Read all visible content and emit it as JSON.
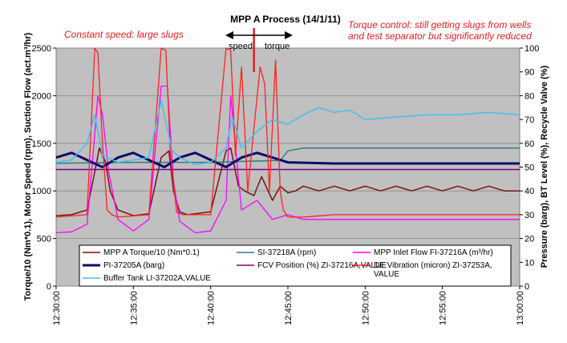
{
  "chart_data": {
    "type": "line",
    "title": "MPP A Process (14/1/11)",
    "annotations": {
      "left": "Constant speed: large slugs",
      "right_line1": "Torque control: still getting slugs from wells",
      "right_line2": "and test separator but significantly reduced",
      "speed": "speed",
      "torque": "torque"
    },
    "ylabel_left": "Torque/10 (Nm*0.1), Motor Speed (rpm), Suction Flow (act.m³/hr)",
    "ylabel_right": "Pressure (barg), BT Level (%), Recycle Valve (%)",
    "y_left": {
      "min": 0,
      "max": 2500,
      "ticks": [
        0,
        500,
        1000,
        1500,
        2000,
        2500
      ]
    },
    "y_right": {
      "min": 0,
      "max": 100,
      "ticks": [
        0,
        10,
        20,
        30,
        40,
        50,
        60,
        70,
        80,
        90,
        100
      ]
    },
    "x": {
      "start": "12:30:00",
      "end": "13:00:00",
      "ticks": [
        "12:30:00",
        "12:35:00",
        "12:40:00",
        "12:45:00",
        "12:50:00",
        "12:55:00",
        "13:00:00"
      ]
    },
    "switch_time_min": 12.8,
    "grid": true,
    "legend_position": "bottom",
    "series": [
      {
        "name": "MPP A Torque/10 (Nm*0.1)",
        "axis": "left",
        "color": "#7b1010",
        "width": 1.5,
        "x": [
          0,
          1,
          2,
          2.5,
          2.8,
          3.2,
          3.5,
          4,
          5,
          6,
          6.8,
          7.3,
          7.6,
          8,
          8.5,
          9,
          10,
          11,
          11.3,
          11.8,
          12.2,
          12.8,
          13.3,
          14,
          14.5,
          15,
          15.5,
          16,
          17,
          18,
          19,
          20,
          21,
          22,
          23,
          24,
          25,
          26,
          27,
          28,
          29,
          30
        ],
        "y": [
          740,
          750,
          800,
          1200,
          1450,
          1300,
          1000,
          800,
          740,
          760,
          1350,
          1420,
          1000,
          780,
          750,
          760,
          780,
          1420,
          1450,
          1050,
          1000,
          950,
          1150,
          900,
          1050,
          980,
          1000,
          1050,
          1000,
          1050,
          1000,
          1050,
          1000,
          1050,
          1000,
          1050,
          1000,
          1050,
          1000,
          1050,
          1000,
          1000
        ]
      },
      {
        "name": "SI-37218A (rpm)",
        "axis": "left",
        "color": "#2e7d7d",
        "width": 1.5,
        "x": [
          0,
          5,
          10,
          12,
          14.5,
          15,
          16,
          18,
          20,
          22,
          24,
          26,
          28,
          30
        ],
        "y": [
          1290,
          1300,
          1300,
          1310,
          1320,
          1420,
          1450,
          1450,
          1450,
          1450,
          1450,
          1450,
          1450,
          1450
        ]
      },
      {
        "name": "MPP Inlet Flow FI-37216A (m³/hr)",
        "axis": "left",
        "color": "#ff00ff",
        "width": 1.3,
        "x": [
          0,
          1,
          2,
          2.4,
          2.7,
          3,
          3.4,
          4,
          5,
          6,
          6.8,
          7.2,
          7.6,
          8,
          9,
          10,
          11,
          11.3,
          11.7,
          12,
          12.5,
          13,
          14,
          15,
          16,
          18,
          20,
          22,
          24,
          26,
          28,
          30
        ],
        "y": [
          560,
          570,
          650,
          1400,
          2000,
          1800,
          1200,
          700,
          580,
          700,
          2100,
          2100,
          1100,
          680,
          560,
          580,
          900,
          2000,
          1300,
          800,
          850,
          900,
          700,
          750,
          700,
          700,
          700,
          700,
          700,
          700,
          700,
          700
        ]
      },
      {
        "name": "PI-37205A (barg)",
        "axis": "right",
        "color": "#0b0b6a",
        "width": 3,
        "x": [
          0,
          1,
          2,
          3,
          4,
          5,
          6,
          7,
          8,
          9,
          10,
          11,
          12,
          13,
          14,
          15,
          18,
          22,
          26,
          30
        ],
        "y": [
          54,
          56,
          53,
          50,
          54,
          56,
          53,
          50,
          54,
          56,
          53,
          50,
          54,
          56,
          54,
          52,
          51.5,
          51.5,
          51.5,
          51.5
        ]
      },
      {
        "name": "FCV Position (%) ZI-37216A,VALUE",
        "axis": "right",
        "color": "#800080",
        "width": 1.5,
        "x": [
          0,
          15,
          30
        ],
        "y": [
          49,
          49,
          49
        ]
      },
      {
        "name": "DE Vibration (micron) ZI-37253A, VALUE",
        "axis": "right",
        "color": "#ff2020",
        "width": 1.3,
        "x": [
          0,
          2,
          2.5,
          2.7,
          3,
          3.3,
          3.6,
          4,
          6,
          6.8,
          7.1,
          7.4,
          7.8,
          8.2,
          10,
          11,
          11.3,
          11.6,
          12,
          12.4,
          13.2,
          13.5,
          13.8,
          14.2,
          14.5,
          14.7,
          15,
          16,
          18,
          20,
          22,
          24,
          26,
          28,
          30
        ],
        "y": [
          29,
          30,
          100,
          98,
          60,
          32,
          30,
          29,
          30,
          100,
          99,
          55,
          31,
          30,
          30,
          100,
          99,
          55,
          92,
          40,
          92,
          85,
          40,
          95,
          40,
          32,
          29,
          29,
          30,
          30,
          30,
          30,
          30,
          30,
          30
        ]
      },
      {
        "name": "Buffer Tank LI-37202A,VALUE",
        "axis": "right",
        "color": "#40c0f0",
        "width": 1.5,
        "x": [
          0,
          1,
          2,
          2.5,
          3,
          4,
          5,
          6,
          6.8,
          7.5,
          8,
          9,
          10,
          11,
          11.4,
          12,
          13,
          14,
          15,
          16,
          17,
          18,
          19,
          20,
          22,
          24,
          26,
          28,
          30
        ],
        "y": [
          52,
          53,
          60,
          72,
          55,
          52,
          53,
          54,
          78,
          57,
          54,
          51,
          52,
          58,
          71,
          58,
          65,
          70,
          68,
          72,
          75,
          73,
          74,
          70,
          71,
          72,
          72,
          73,
          72
        ]
      }
    ]
  }
}
